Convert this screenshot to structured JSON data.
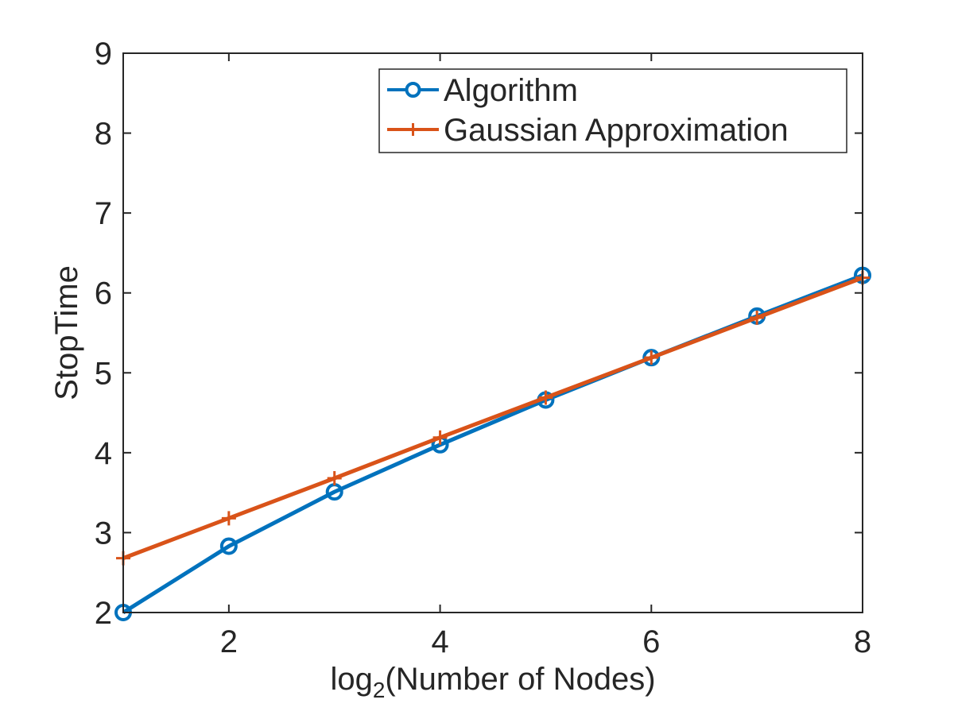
{
  "chart_data": {
    "type": "line",
    "title": "",
    "xlabel": "(Number of Nodes)",
    "xlabel_prefix": "log",
    "xlabel_subscript": "2",
    "ylabel": "StopTime",
    "xlim": [
      1,
      8
    ],
    "ylim": [
      2,
      9
    ],
    "xticks": [
      2,
      4,
      6,
      8
    ],
    "yticks": [
      2,
      3,
      4,
      5,
      6,
      7,
      8,
      9
    ],
    "grid": false,
    "legend_position": "top-right",
    "x": [
      1,
      2,
      3,
      4,
      5,
      6,
      7,
      8
    ],
    "series": [
      {
        "name": "Algorithm",
        "marker": "circle",
        "color": "#0072BD",
        "values": [
          2.0,
          2.83,
          3.51,
          4.1,
          4.66,
          5.19,
          5.71,
          6.22
        ]
      },
      {
        "name": "Gaussian Approximation",
        "marker": "plus",
        "color": "#D95319",
        "values": [
          2.68,
          3.18,
          3.68,
          4.19,
          4.69,
          5.19,
          5.69,
          6.19
        ]
      }
    ]
  }
}
